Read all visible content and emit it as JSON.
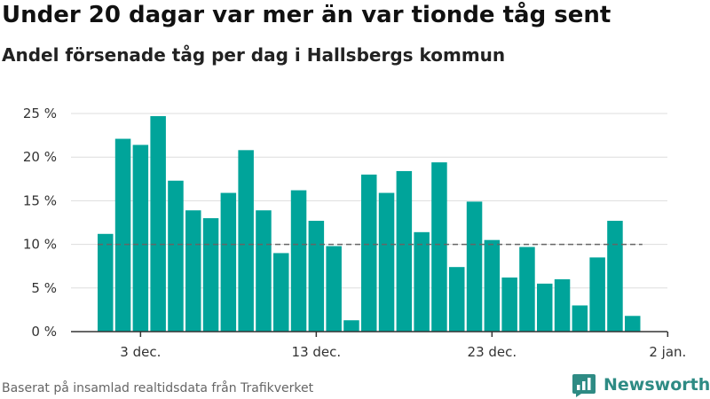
{
  "header": {
    "title": "Under 20 dagar var mer än var tionde tåg sent",
    "subtitle": "Andel försenade tåg per dag i Hallsbergs kommun"
  },
  "footer": {
    "source": "Baserat på insamlad realtidsdata från Trafikverket",
    "brand": "Newsworthy"
  },
  "colors": {
    "bar": "#00a49a",
    "reference_line": "#666666",
    "grid": "#dddddd",
    "brand": "#2e8b84"
  },
  "chart_data": {
    "type": "bar",
    "title": "Under 20 dagar var mer än var tionde tåg sent",
    "subtitle": "Andel försenade tåg per dag i Hallsbergs kommun",
    "xlabel": "",
    "ylabel": "",
    "x_start": "2023-12-01",
    "ylim": [
      0,
      25
    ],
    "yticks": [
      0,
      5,
      10,
      15,
      20,
      25
    ],
    "ytick_labels": [
      "0 %",
      "5 %",
      "10 %",
      "15 %",
      "20 %",
      "25 %"
    ],
    "xticks": [
      {
        "date": "2023-12-03",
        "label": "3 dec."
      },
      {
        "date": "2023-12-13",
        "label": "13 dec."
      },
      {
        "date": "2023-12-23",
        "label": "23 dec."
      },
      {
        "date": "2024-01-02",
        "label": "2 jan."
      }
    ],
    "values": [
      11.2,
      22.1,
      21.4,
      24.7,
      17.3,
      13.9,
      13.0,
      15.9,
      20.8,
      13.9,
      9.0,
      16.2,
      12.7,
      9.8,
      1.3,
      18.0,
      15.9,
      18.4,
      11.4,
      19.4,
      7.4,
      14.9,
      10.5,
      6.2,
      9.7,
      5.5,
      6.0,
      3.0,
      8.5,
      12.7,
      1.8
    ],
    "reference_line": 10,
    "grid": true,
    "legend": "none"
  }
}
